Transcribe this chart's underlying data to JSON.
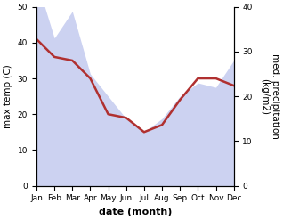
{
  "months": [
    "Jan",
    "Feb",
    "Mar",
    "Apr",
    "May",
    "Jun",
    "Jul",
    "Aug",
    "Sep",
    "Oct",
    "Nov",
    "Dec"
  ],
  "max_temp": [
    41,
    36,
    35,
    30,
    20,
    19,
    15,
    17,
    24,
    30,
    30,
    28
  ],
  "precipitation": [
    46,
    33,
    39,
    25,
    20,
    15,
    12,
    15,
    20,
    23,
    22,
    28
  ],
  "temp_ylim": [
    0,
    50
  ],
  "precip_ylim": [
    0,
    40
  ],
  "temp_color": "#b03030",
  "precip_color": "#aab4e8",
  "precip_fill_alpha": 0.6,
  "xlabel": "date (month)",
  "ylabel_left": "max temp (C)",
  "ylabel_right": "med. precipitation\n(kg/m2)",
  "xlabel_fontsize": 8,
  "ylabel_fontsize": 7.5,
  "tick_fontsize": 6.5,
  "temp_linewidth": 1.8,
  "background_color": "#ffffff"
}
